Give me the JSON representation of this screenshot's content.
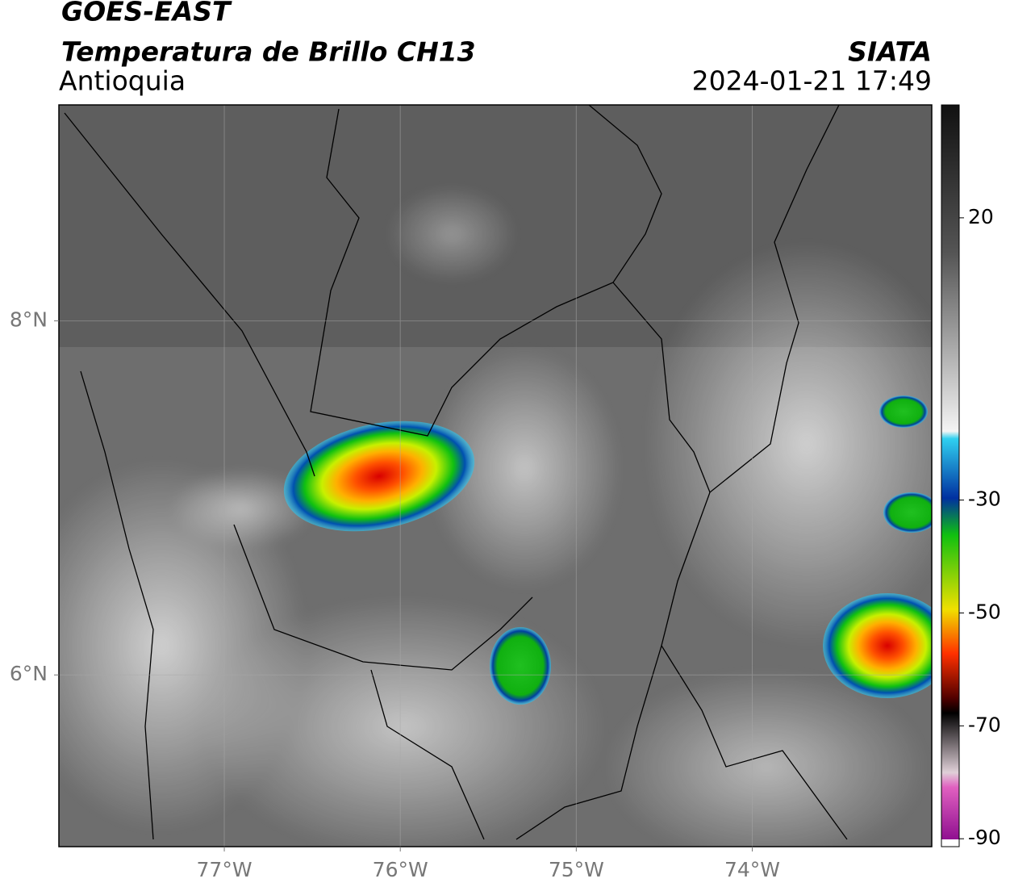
{
  "header": {
    "title": "GOES-EAST",
    "subtitle": "Temperatura de Brillo CH13",
    "region": "Antioquia",
    "source": "SIATA",
    "datetime": "2024-01-21 17:49"
  },
  "map": {
    "lon_range": [
      -77.94,
      -72.98
    ],
    "lat_range": [
      5.03,
      9.22
    ],
    "lon_ticks": [
      {
        "value": -77,
        "label": "77°W"
      },
      {
        "value": -76,
        "label": "76°W"
      },
      {
        "value": -75,
        "label": "75°W"
      },
      {
        "value": -74,
        "label": "74°W"
      }
    ],
    "lat_ticks": [
      {
        "value": 8,
        "label": "8°N"
      },
      {
        "value": 6,
        "label": "6°N"
      }
    ]
  },
  "colorbar": {
    "range": [
      -91.4,
      40
    ],
    "ticks": [
      20,
      -30,
      -50,
      -70,
      -90
    ]
  }
}
